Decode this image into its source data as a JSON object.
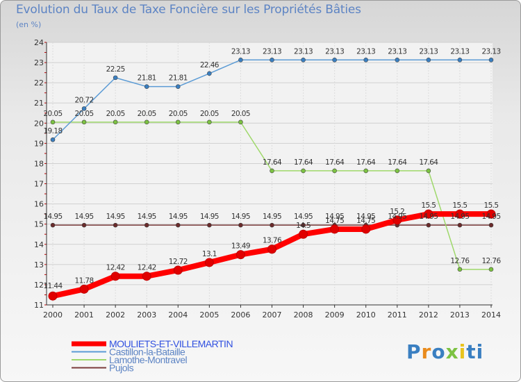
{
  "header": {
    "title": "Evolution du Taux de Taxe Foncière sur les Propriétés Bâties",
    "unit": "(en %)"
  },
  "brand": {
    "logo_text": "Proxiti"
  },
  "chart_data": {
    "type": "line",
    "title": "Evolution du Taux de Taxe Foncière sur les Propriétés Bâties",
    "ylabel": "(en %)",
    "xlabel": "",
    "ylim": [
      11,
      24
    ],
    "yticks": [
      11,
      12,
      13,
      14,
      15,
      16,
      17,
      18,
      19,
      20,
      21,
      22,
      23,
      24
    ],
    "grid": true,
    "legend_position": "bottom-left",
    "categories": [
      "2000",
      "2001",
      "2002",
      "2003",
      "2004",
      "2005",
      "2006",
      "2007",
      "2008",
      "2009",
      "2010",
      "2011",
      "2012",
      "2013",
      "2014"
    ],
    "series": [
      {
        "name": "MOULIETS-ET-VILLEMARTIN",
        "color": "#ff0000",
        "marker": "#e00000",
        "bold": true,
        "values": [
          11.44,
          11.78,
          12.42,
          12.42,
          12.72,
          13.1,
          13.49,
          13.76,
          14.5,
          14.75,
          14.75,
          15.2,
          15.5,
          15.5,
          15.5
        ],
        "labels": [
          "11.44",
          "11.78",
          "12.42",
          "12.42",
          "12.72",
          "13.1",
          "13.49",
          "13.76",
          "14.5",
          "14.75",
          "14.75",
          "15.2",
          "15.5",
          "15.5",
          "15.5"
        ]
      },
      {
        "name": "Castillon-la-Bataille",
        "color": "#5b9bd5",
        "marker": "#3a7fc1",
        "bold": false,
        "values": [
          19.18,
          20.72,
          22.25,
          21.81,
          21.81,
          22.46,
          23.13,
          23.13,
          23.13,
          23.13,
          23.13,
          23.13,
          23.13,
          23.13,
          23.13
        ],
        "labels": [
          "19.18",
          "20.72",
          "22.25",
          "21.81",
          "21.81",
          "22.46",
          "23.13",
          "23.13",
          "23.13",
          "23.13",
          "23.13",
          "23.13",
          "23.13",
          "23.13",
          "23.13"
        ]
      },
      {
        "name": "Lamothe-Montravel",
        "color": "#9ed86a",
        "marker": "#7cc242",
        "bold": false,
        "values": [
          20.05,
          20.05,
          20.05,
          20.05,
          20.05,
          20.05,
          20.05,
          17.64,
          17.64,
          17.64,
          17.64,
          17.64,
          17.64,
          12.76,
          12.76
        ],
        "labels": [
          "20.05",
          "20.05",
          "20.05",
          "20.05",
          "20.05",
          "20.05",
          "20.05",
          "17.64",
          "17.64",
          "17.64",
          "17.64",
          "17.64",
          "17.64",
          "12.76",
          "12.76"
        ]
      },
      {
        "name": "Pujols",
        "color": "#7a3b3b",
        "marker": "#6a2a2a",
        "bold": false,
        "values": [
          14.95,
          14.95,
          14.95,
          14.95,
          14.95,
          14.95,
          14.95,
          14.95,
          14.95,
          14.95,
          14.95,
          14.95,
          14.95,
          14.95,
          14.95
        ],
        "labels": [
          "14.95",
          "14.95",
          "14.95",
          "14.95",
          "14.95",
          "14.95",
          "14.95",
          "14.95",
          "14.95",
          "14.95",
          "14.95",
          "14.95",
          "14.95",
          "14.95",
          "14.95"
        ]
      }
    ]
  }
}
